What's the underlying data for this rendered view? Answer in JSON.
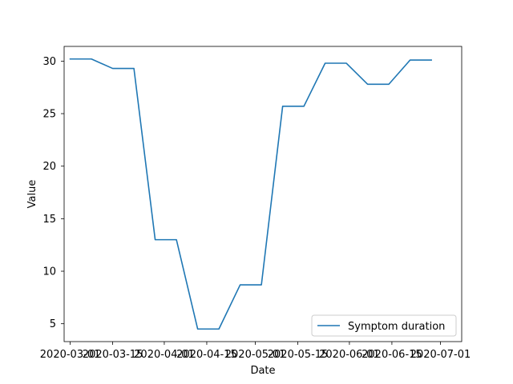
{
  "chart_data": {
    "type": "line",
    "title": "",
    "xlabel": "Date",
    "ylabel": "Value",
    "xlim": [
      "2020-02-28",
      "2020-07-08"
    ],
    "ylim": [
      3.3,
      31.4
    ],
    "x_ticks": [
      "2020-03-01",
      "2020-03-15",
      "2020-04-01",
      "2020-04-15",
      "2020-05-01",
      "2020-05-15",
      "2020-06-01",
      "2020-06-15",
      "2020-07-01"
    ],
    "y_ticks": [
      5,
      10,
      15,
      20,
      25,
      30
    ],
    "grid": false,
    "legend_position": "lower right",
    "series": [
      {
        "name": "Symptom duration",
        "color": "#1f77b4",
        "x": [
          "2020-03-01",
          "2020-03-08",
          "2020-03-15",
          "2020-03-22",
          "2020-03-29",
          "2020-04-05",
          "2020-04-12",
          "2020-04-19",
          "2020-04-26",
          "2020-05-03",
          "2020-05-10",
          "2020-05-17",
          "2020-05-24",
          "2020-05-31",
          "2020-06-07",
          "2020-06-14",
          "2020-06-21",
          "2020-06-28"
        ],
        "values": [
          30.2,
          30.2,
          29.3,
          29.3,
          13.0,
          13.0,
          4.5,
          4.5,
          8.7,
          8.7,
          25.7,
          25.7,
          29.8,
          29.8,
          27.8,
          27.8,
          30.1,
          30.1
        ]
      }
    ]
  }
}
